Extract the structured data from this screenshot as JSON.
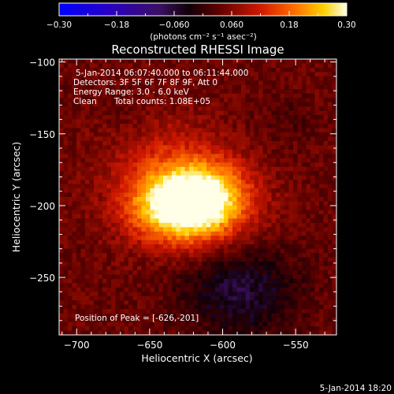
{
  "chart_data": {
    "type": "heatmap",
    "title": "Reconstructed RHESSI Image",
    "xlabel": "Heliocentric X (arcsec)",
    "ylabel": "Heliocentric Y (arcsec)",
    "xlim": [
      -712,
      -522
    ],
    "ylim": [
      -290,
      -98
    ],
    "xticks": [
      -700,
      -650,
      -600,
      -550
    ],
    "yticks": [
      -100,
      -150,
      -200,
      -250
    ],
    "colorbar": {
      "min": -0.3,
      "max": 0.3,
      "ticks": [
        "-0.30",
        "-0.18",
        "-0.060",
        "0.060",
        "0.18",
        "0.30"
      ],
      "units_label": "(photons cm⁻² s⁻¹ asec⁻²)"
    },
    "annotations": [
      "5-Jan-2014 06:07:40.000 to 06:11:44.000",
      "Detectors: 3F 5F 6F 7F 8F 9F, Att 0",
      "Energy Range: 3.0 - 6.0 keV",
      "Clean",
      "Total counts: 1.08E+05",
      "Position of Peak = [-626,-201]"
    ],
    "peak": {
      "x": -626,
      "y": -201,
      "value": 0.3
    },
    "sources": [
      {
        "x": -626,
        "y": -201,
        "sx": 26,
        "sy": 18,
        "amp": 0.3
      },
      {
        "x": -610,
        "y": -190,
        "sx": 22,
        "sy": 18,
        "amp": 0.1
      },
      {
        "x": -640,
        "y": -168,
        "sx": 28,
        "sy": 24,
        "amp": 0.06
      }
    ],
    "negative_regions": [
      {
        "x": -588,
        "y": -260,
        "sx": 28,
        "sy": 22,
        "amp": -0.1
      },
      {
        "x": -664,
        "y": -140,
        "sx": 10,
        "sy": 10,
        "amp": -0.02
      },
      {
        "x": -556,
        "y": -140,
        "sx": 14,
        "sy": 12,
        "amp": -0.025
      }
    ],
    "background": 0.04
  },
  "footer_timestamp": "5-Jan-2014 18:20"
}
